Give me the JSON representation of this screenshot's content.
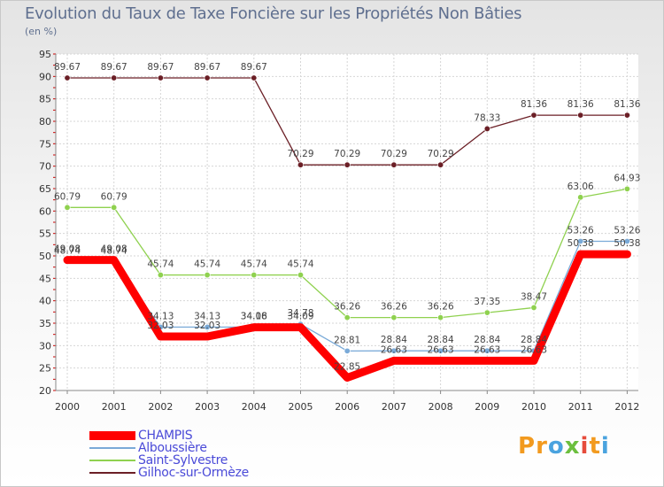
{
  "brand": {
    "name": "Proxiti",
    "letters": [
      {
        "ch": "P",
        "color": "#f29a1f"
      },
      {
        "ch": "r",
        "color": "#f29a1f"
      },
      {
        "ch": "o",
        "color": "#4aa3df"
      },
      {
        "ch": "x",
        "color": "#6cbf3e"
      },
      {
        "ch": "i",
        "color": "#e64c3c"
      },
      {
        "ch": "t",
        "color": "#f29a1f"
      },
      {
        "ch": "i",
        "color": "#4aa3df"
      }
    ]
  },
  "chart_data": {
    "type": "line",
    "title": "Evolution du Taux de Taxe Foncière sur les Propriétés Non Bâties",
    "subtitle": "(en %)",
    "xlabel": "",
    "ylabel": "(en %)",
    "categories": [
      "2000",
      "2001",
      "2002",
      "2003",
      "2004",
      "2005",
      "2006",
      "2007",
      "2008",
      "2009",
      "2010",
      "2011",
      "2012"
    ],
    "y_ticks": [
      20,
      25,
      30,
      35,
      40,
      45,
      50,
      55,
      60,
      65,
      70,
      75,
      80,
      85,
      90,
      95
    ],
    "ylim": [
      20,
      95
    ],
    "grid": true,
    "legend_position": "bottom-left",
    "series": [
      {
        "name": "Gilhoc-sur-Ormèze",
        "color": "#6b1f26",
        "style": "thin",
        "values": [
          89.67,
          89.67,
          89.67,
          89.67,
          89.67,
          70.29,
          70.29,
          70.29,
          70.29,
          78.33,
          81.36,
          81.36,
          81.36
        ],
        "labels": [
          "89.67",
          "89.67",
          "89.67",
          "89.67",
          "89.67",
          "70.29",
          "70.29",
          "70.29",
          "70.29",
          "78.33",
          "81.36",
          "81.36",
          "81.36"
        ]
      },
      {
        "name": "Saint-Sylvestre",
        "color": "#8fd14f",
        "style": "thin",
        "values": [
          60.79,
          60.79,
          45.74,
          45.74,
          45.74,
          45.74,
          36.26,
          36.26,
          36.26,
          37.35,
          38.47,
          63.06,
          64.93
        ],
        "labels": [
          "60.79",
          "60.79",
          "45.74",
          "45.74",
          "45.74",
          "45.74",
          "36.26",
          "36.26",
          "36.26",
          "37.35",
          "38.47",
          "63.06",
          "64.93"
        ]
      },
      {
        "name": "Alboussière",
        "color": "#7aaad8",
        "style": "thin",
        "values": [
          48.74,
          48.74,
          34.13,
          34.13,
          34.16,
          34.78,
          28.81,
          28.84,
          28.84,
          28.84,
          28.84,
          53.26,
          53.26
        ],
        "labels": [
          "48.74",
          "48.74",
          "34.13",
          "34.13",
          "34.16",
          "34.78",
          "28.81",
          "28.84",
          "28.84",
          "28.84",
          "28.84",
          "53.26",
          "53.26"
        ]
      },
      {
        "name": "CHAMPIS",
        "color": "#ff0000",
        "style": "thick",
        "values": [
          49.08,
          49.08,
          32.03,
          32.03,
          34.08,
          34.09,
          22.85,
          26.63,
          26.63,
          26.63,
          26.63,
          50.38,
          50.38
        ],
        "labels": [
          "49.08",
          "49.08",
          "32.03",
          "32.03",
          "34.08",
          "34.09",
          "22.85",
          "26.63",
          "26.63",
          "26.63",
          "26.63",
          "50.38",
          "50.38"
        ]
      }
    ],
    "legend": [
      "CHAMPIS",
      "Alboussière",
      "Saint-Sylvestre",
      "Gilhoc-sur-Ormèze"
    ]
  }
}
